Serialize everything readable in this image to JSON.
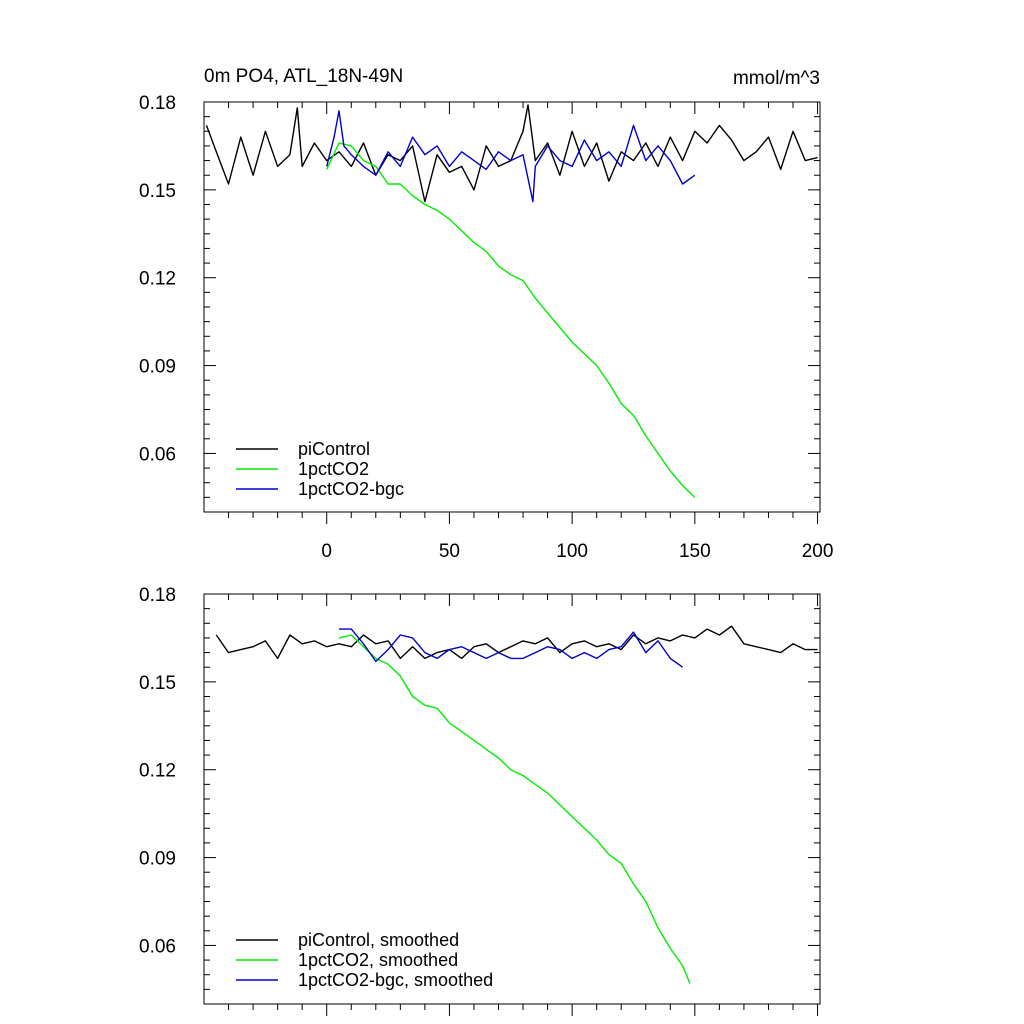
{
  "title": "0m PO4, ATL_18N-49N",
  "units": "mmol/m^3",
  "colors": {
    "piControl": "#000000",
    "1pctCO2": "#00ee00",
    "1pctCO2-bgc": "#0000cc"
  },
  "chart_data": [
    {
      "type": "line",
      "panel": "top",
      "title": "0m PO4, ATL_18N-49N",
      "units_label": "mmol/m^3",
      "xlim": [
        -50,
        201
      ],
      "ylim": [
        0.04,
        0.18
      ],
      "x_ticks": [
        0,
        50,
        100,
        150,
        200
      ],
      "x_tick_labels": [
        "0",
        "50",
        "100",
        "150",
        "200"
      ],
      "y_ticks": [
        0.06,
        0.09,
        0.12,
        0.15,
        0.18
      ],
      "y_tick_labels": [
        "0.06",
        "0.09",
        "0.12",
        "0.15",
        "0.18"
      ],
      "legend_position": "bottom-left",
      "series": [
        {
          "name": "piControl",
          "color": "#000000",
          "x": [
            -49,
            -45,
            -40,
            -35,
            -30,
            -25,
            -20,
            -15,
            -12,
            -10,
            -5,
            0,
            5,
            10,
            15,
            20,
            25,
            30,
            35,
            40,
            45,
            50,
            55,
            60,
            65,
            70,
            75,
            80,
            82,
            85,
            90,
            95,
            100,
            105,
            110,
            115,
            120,
            125,
            130,
            135,
            140,
            145,
            150,
            155,
            160,
            165,
            170,
            175,
            180,
            185,
            190,
            195,
            200
          ],
          "y": [
            0.172,
            0.163,
            0.152,
            0.168,
            0.155,
            0.17,
            0.158,
            0.162,
            0.178,
            0.158,
            0.166,
            0.16,
            0.163,
            0.158,
            0.166,
            0.155,
            0.162,
            0.16,
            0.165,
            0.146,
            0.162,
            0.156,
            0.158,
            0.15,
            0.165,
            0.158,
            0.16,
            0.17,
            0.179,
            0.16,
            0.166,
            0.155,
            0.17,
            0.158,
            0.166,
            0.153,
            0.163,
            0.16,
            0.166,
            0.158,
            0.168,
            0.16,
            0.17,
            0.166,
            0.172,
            0.167,
            0.16,
            0.163,
            0.168,
            0.157,
            0.17,
            0.16,
            0.161
          ]
        },
        {
          "name": "1pctCO2",
          "color": "#00ee00",
          "x": [
            0,
            5,
            10,
            15,
            20,
            25,
            30,
            35,
            40,
            45,
            50,
            55,
            60,
            65,
            70,
            75,
            80,
            85,
            90,
            95,
            100,
            105,
            110,
            115,
            120,
            125,
            130,
            135,
            140,
            145,
            150
          ],
          "y": [
            0.157,
            0.166,
            0.165,
            0.16,
            0.158,
            0.152,
            0.152,
            0.148,
            0.145,
            0.143,
            0.14,
            0.136,
            0.132,
            0.129,
            0.124,
            0.121,
            0.119,
            0.113,
            0.108,
            0.103,
            0.098,
            0.094,
            0.09,
            0.084,
            0.077,
            0.073,
            0.066,
            0.06,
            0.054,
            0.049,
            0.045
          ]
        },
        {
          "name": "1pctCO2-bgc",
          "color": "#0000cc",
          "x": [
            0,
            3,
            5,
            7,
            10,
            15,
            20,
            25,
            30,
            35,
            40,
            45,
            50,
            55,
            60,
            65,
            70,
            75,
            80,
            84,
            85,
            90,
            95,
            100,
            105,
            110,
            115,
            120,
            125,
            130,
            135,
            140,
            145,
            150
          ],
          "y": [
            0.158,
            0.168,
            0.177,
            0.165,
            0.162,
            0.158,
            0.155,
            0.163,
            0.158,
            0.168,
            0.162,
            0.165,
            0.158,
            0.163,
            0.16,
            0.157,
            0.163,
            0.16,
            0.162,
            0.146,
            0.158,
            0.165,
            0.16,
            0.158,
            0.167,
            0.16,
            0.163,
            0.158,
            0.172,
            0.16,
            0.165,
            0.16,
            0.152,
            0.155
          ]
        }
      ]
    },
    {
      "type": "line",
      "panel": "bottom",
      "xlim": [
        -50,
        201
      ],
      "ylim": [
        0.04,
        0.18
      ],
      "x_ticks": [
        0,
        50,
        100,
        150,
        200
      ],
      "y_ticks": [
        0.06,
        0.09,
        0.12,
        0.15,
        0.18
      ],
      "y_tick_labels": [
        "0.06",
        "0.09",
        "0.12",
        "0.15",
        "0.18"
      ],
      "legend_position": "bottom-left",
      "series": [
        {
          "name": "piControl, smoothed",
          "color": "#000000",
          "x": [
            -45,
            -40,
            -35,
            -30,
            -25,
            -20,
            -15,
            -10,
            -5,
            0,
            5,
            10,
            15,
            20,
            25,
            30,
            35,
            40,
            45,
            50,
            55,
            60,
            65,
            70,
            75,
            80,
            85,
            90,
            95,
            100,
            105,
            110,
            115,
            120,
            125,
            130,
            135,
            140,
            145,
            150,
            155,
            160,
            165,
            170,
            175,
            180,
            185,
            190,
            195,
            200
          ],
          "y": [
            0.166,
            0.16,
            0.161,
            0.162,
            0.164,
            0.158,
            0.166,
            0.163,
            0.164,
            0.162,
            0.163,
            0.162,
            0.166,
            0.163,
            0.164,
            0.158,
            0.162,
            0.158,
            0.16,
            0.161,
            0.158,
            0.162,
            0.163,
            0.16,
            0.162,
            0.164,
            0.163,
            0.165,
            0.16,
            0.163,
            0.164,
            0.162,
            0.163,
            0.161,
            0.166,
            0.163,
            0.165,
            0.164,
            0.166,
            0.165,
            0.168,
            0.166,
            0.169,
            0.163,
            0.162,
            0.161,
            0.16,
            0.163,
            0.161,
            0.161
          ]
        },
        {
          "name": "1pctCO2, smoothed",
          "color": "#00ee00",
          "x": [
            5,
            10,
            15,
            20,
            25,
            30,
            35,
            40,
            45,
            50,
            55,
            60,
            65,
            70,
            75,
            80,
            85,
            90,
            95,
            100,
            105,
            110,
            115,
            120,
            125,
            130,
            135,
            140,
            145,
            148
          ],
          "y": [
            0.165,
            0.166,
            0.162,
            0.158,
            0.156,
            0.152,
            0.145,
            0.142,
            0.141,
            0.136,
            0.133,
            0.13,
            0.127,
            0.124,
            0.12,
            0.118,
            0.115,
            0.112,
            0.108,
            0.104,
            0.1,
            0.096,
            0.091,
            0.088,
            0.081,
            0.075,
            0.066,
            0.059,
            0.053,
            0.047
          ]
        },
        {
          "name": "1pctCO2-bgc, smoothed",
          "color": "#0000cc",
          "x": [
            5,
            10,
            15,
            20,
            25,
            30,
            35,
            40,
            45,
            50,
            55,
            60,
            65,
            70,
            75,
            80,
            85,
            90,
            95,
            100,
            105,
            110,
            115,
            120,
            125,
            130,
            135,
            140,
            145
          ],
          "y": [
            0.168,
            0.168,
            0.163,
            0.157,
            0.161,
            0.166,
            0.165,
            0.16,
            0.158,
            0.161,
            0.162,
            0.16,
            0.158,
            0.16,
            0.158,
            0.158,
            0.16,
            0.162,
            0.161,
            0.158,
            0.16,
            0.158,
            0.161,
            0.162,
            0.167,
            0.16,
            0.164,
            0.158,
            0.155
          ]
        }
      ]
    }
  ]
}
